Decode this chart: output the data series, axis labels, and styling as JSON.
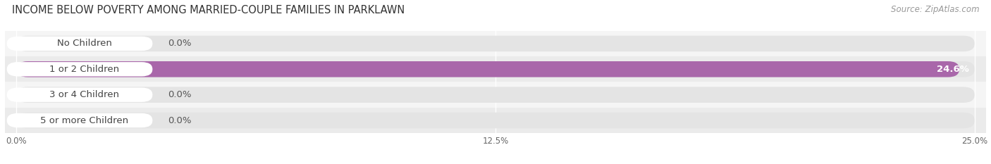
{
  "title": "INCOME BELOW POVERTY AMONG MARRIED-COUPLE FAMILIES IN PARKLAWN",
  "source": "Source: ZipAtlas.com",
  "categories": [
    "No Children",
    "1 or 2 Children",
    "3 or 4 Children",
    "5 or more Children"
  ],
  "values": [
    0.0,
    24.6,
    0.0,
    0.0
  ],
  "bar_colors": [
    "#a0b4d6",
    "#a967aa",
    "#4cb8b0",
    "#a8aed6"
  ],
  "row_bg_colors": [
    "#f0f0f0",
    "#e8e8e8",
    "#f0f0f0",
    "#e8e8e8"
  ],
  "xlim_max": 25.0,
  "xticks": [
    0.0,
    12.5,
    25.0
  ],
  "xticklabels": [
    "0.0%",
    "12.5%",
    "25.0%"
  ],
  "background_color": "#ffffff",
  "bar_bg_color": "#e4e4e4",
  "title_fontsize": 10.5,
  "source_fontsize": 8.5,
  "label_fontsize": 9.5,
  "value_fontsize": 9.5
}
